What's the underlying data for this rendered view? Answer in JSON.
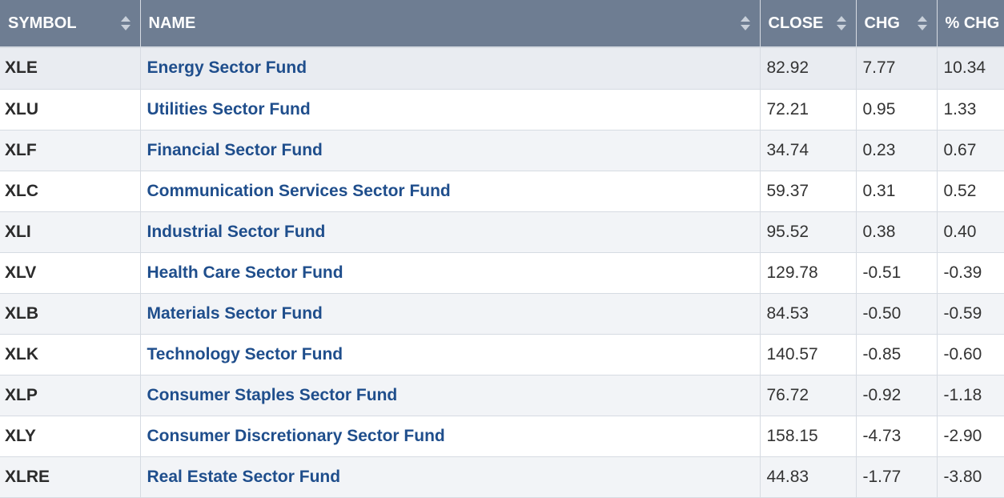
{
  "columns": [
    "SYMBOL",
    "NAME",
    "CLOSE",
    "CHG",
    "% CHG"
  ],
  "rows": [
    {
      "symbol": "XLE",
      "name": "Energy Sector Fund",
      "close": "82.92",
      "chg": "7.77",
      "pct": "10.34"
    },
    {
      "symbol": "XLU",
      "name": "Utilities Sector Fund",
      "close": "72.21",
      "chg": "0.95",
      "pct": "1.33"
    },
    {
      "symbol": "XLF",
      "name": "Financial Sector Fund",
      "close": "34.74",
      "chg": "0.23",
      "pct": "0.67"
    },
    {
      "symbol": "XLC",
      "name": "Communication Services Sector Fund",
      "close": "59.37",
      "chg": "0.31",
      "pct": "0.52"
    },
    {
      "symbol": "XLI",
      "name": "Industrial Sector Fund",
      "close": "95.52",
      "chg": "0.38",
      "pct": "0.40"
    },
    {
      "symbol": "XLV",
      "name": "Health Care Sector Fund",
      "close": "129.78",
      "chg": "-0.51",
      "pct": "-0.39"
    },
    {
      "symbol": "XLB",
      "name": "Materials Sector Fund",
      "close": "84.53",
      "chg": "-0.50",
      "pct": "-0.59"
    },
    {
      "symbol": "XLK",
      "name": "Technology Sector Fund",
      "close": "140.57",
      "chg": "-0.85",
      "pct": "-0.60"
    },
    {
      "symbol": "XLP",
      "name": "Consumer Staples Sector Fund",
      "close": "76.72",
      "chg": "-0.92",
      "pct": "-1.18"
    },
    {
      "symbol": "XLY",
      "name": "Consumer Discretionary Sector Fund",
      "close": "158.15",
      "chg": "-4.73",
      "pct": "-2.90"
    },
    {
      "symbol": "XLRE",
      "name": "Real Estate Sector Fund",
      "close": "44.83",
      "chg": "-1.77",
      "pct": "-3.80"
    }
  ],
  "colors": {
    "header_bg": "#6e7d92",
    "link": "#1f4e8c",
    "row_alt": "#f2f4f7"
  },
  "icons": {
    "sort": "sort-arrows-icon"
  }
}
